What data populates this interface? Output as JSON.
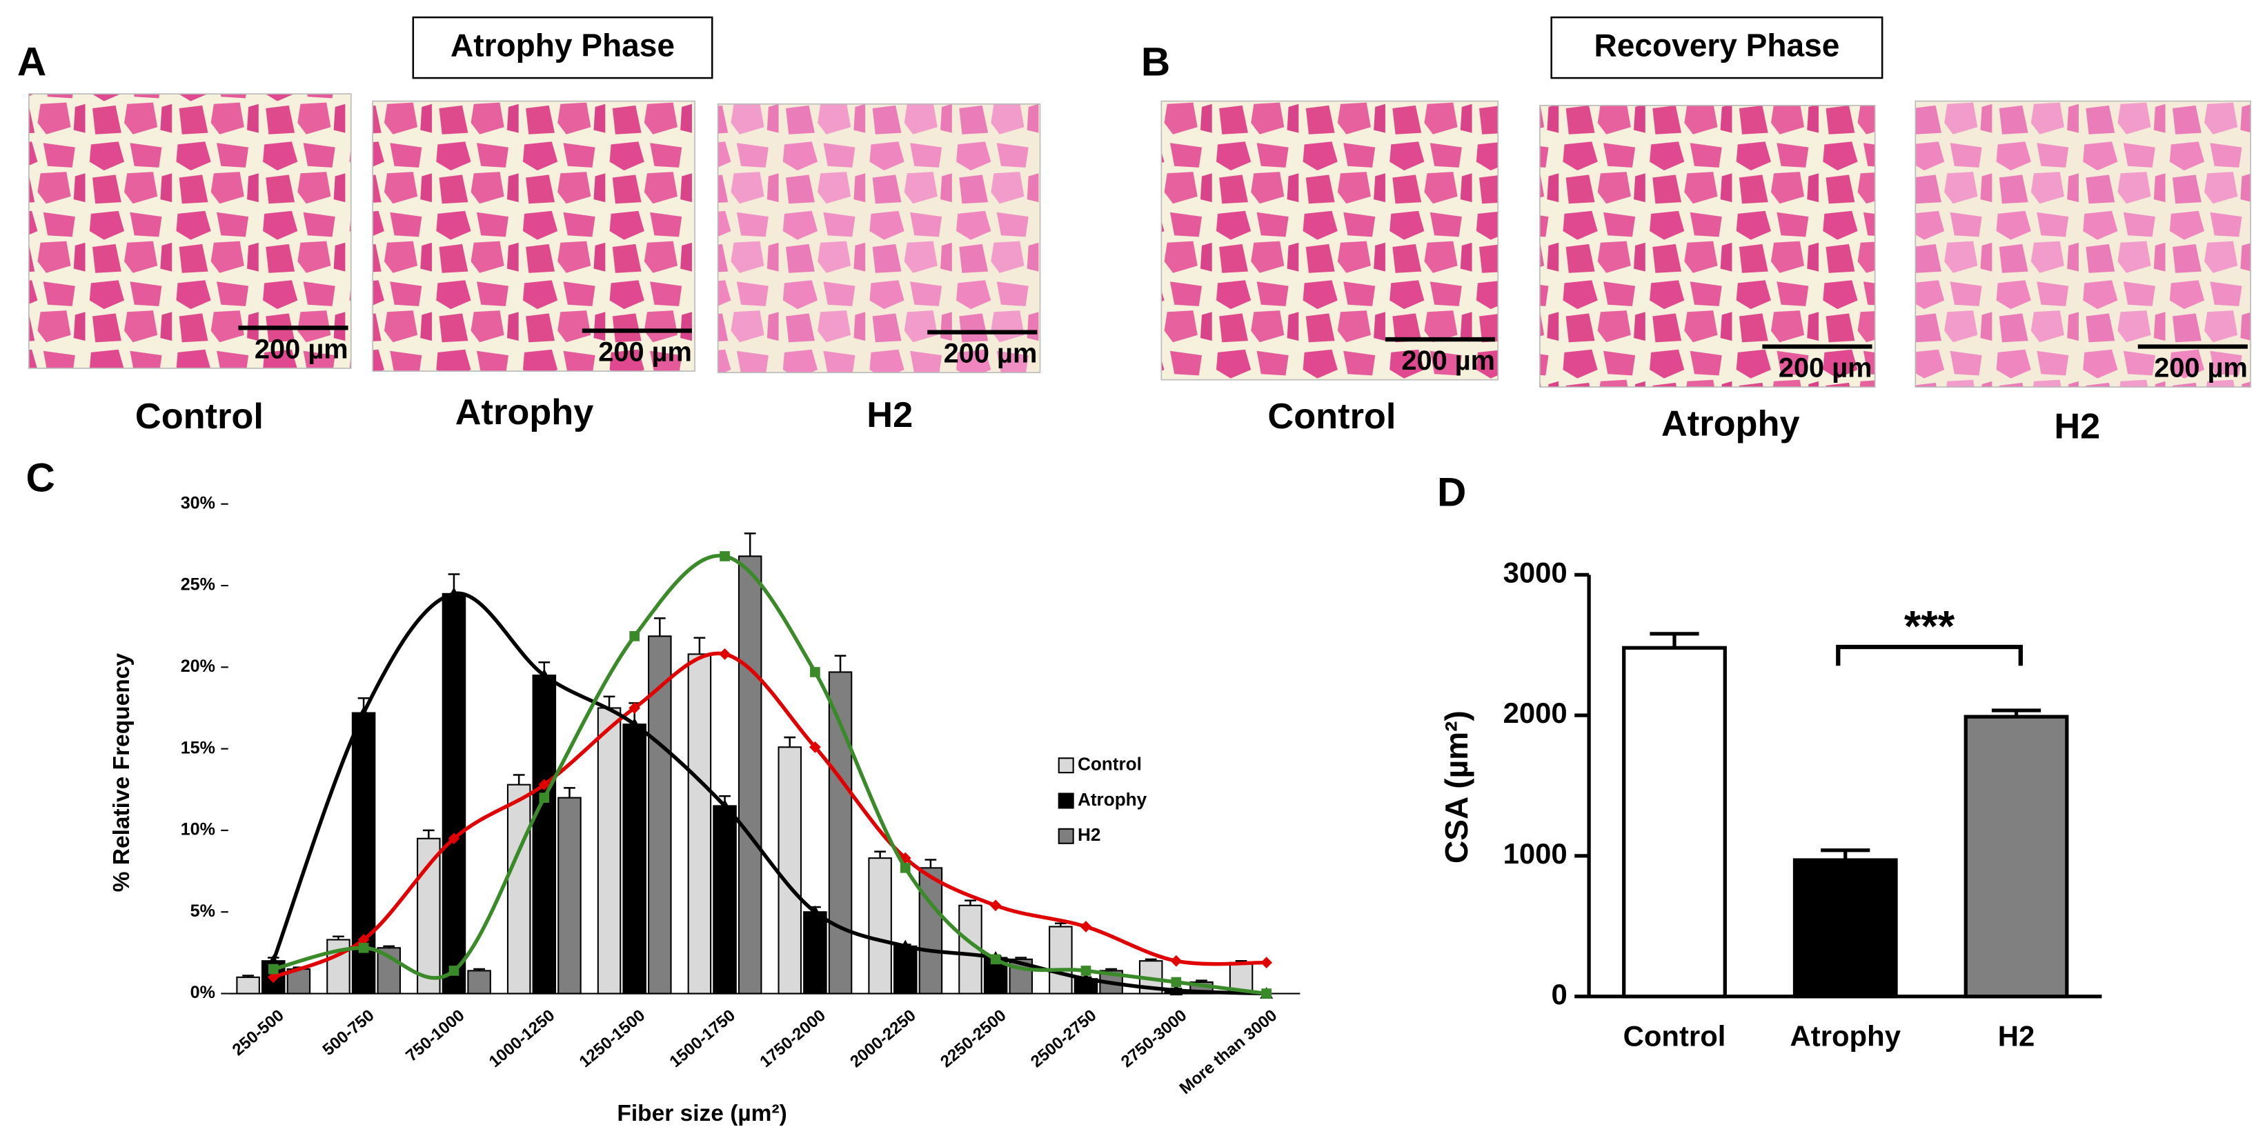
{
  "panels": [
    {
      "letter": "A",
      "title": "Atrophy Phase",
      "images": [
        {
          "label": "Control",
          "scale_bar": "200 µm"
        },
        {
          "label": "Atrophy",
          "scale_bar": "200 µm"
        },
        {
          "label": "H2",
          "scale_bar": "200 µm"
        }
      ]
    },
    {
      "letter": "B",
      "title": "Recovery Phase",
      "images": [
        {
          "label": "Control",
          "scale_bar": "200 µm"
        },
        {
          "label": "Atrophy",
          "scale_bar": "200 µm"
        },
        {
          "label": "H2",
          "scale_bar": "200 µm"
        }
      ]
    }
  ],
  "chart_data": [
    {
      "type": "bar",
      "panel": "C",
      "y_label": "% Relative Frequency",
      "x_label": "Fiber size (µm²)",
      "categories": [
        "250-500",
        "500-750",
        "750-1000",
        "1000-1250",
        "1250-1500",
        "1500-1750",
        "1750-2000",
        "2000-2250",
        "2250-2500",
        "2500-2750",
        "2750-3000",
        "More than 3000"
      ],
      "series": [
        {
          "name": "Control",
          "color": "#d9d9d9",
          "line_color": "#e00000",
          "marker": "diamond",
          "values": [
            1.0,
            3.3,
            9.5,
            12.8,
            17.5,
            20.8,
            15.1,
            8.3,
            5.4,
            4.1,
            2.0,
            1.9
          ],
          "errors": [
            0.1,
            0.2,
            0.5,
            0.6,
            0.7,
            1.0,
            0.6,
            0.4,
            0.3,
            0.2,
            0.1,
            0.1
          ]
        },
        {
          "name": "Atrophy",
          "color": "#000000",
          "line_color": "#000000",
          "marker": "triangle",
          "values": [
            2.0,
            17.2,
            24.5,
            19.5,
            16.5,
            11.5,
            5.0,
            2.9,
            2.2,
            0.9,
            0.2,
            0
          ],
          "errors": [
            0.2,
            0.9,
            1.2,
            0.8,
            1.3,
            0.6,
            0.3,
            0.1,
            0.1,
            0.1,
            0.1,
            0
          ]
        },
        {
          "name": "H2",
          "color": "#7f7f7f",
          "line_color": "#3a8a2a",
          "marker": "square",
          "values": [
            1.5,
            2.8,
            1.4,
            12.0,
            21.9,
            26.8,
            19.7,
            7.7,
            2.1,
            1.4,
            0.7,
            0
          ],
          "errors": [
            0.1,
            0.1,
            0.1,
            0.6,
            1.1,
            1.4,
            1.0,
            0.5,
            0.1,
            0.1,
            0.1,
            0
          ]
        }
      ],
      "trend_lines": true,
      "legend": "right",
      "ylim": [
        0,
        30
      ],
      "yticks": [
        {
          "value": 0,
          "label": "0%"
        },
        {
          "value": 5,
          "label": "5%"
        },
        {
          "value": 10,
          "label": "10%"
        },
        {
          "value": 15,
          "label": "15%"
        },
        {
          "value": 20,
          "label": "20%"
        },
        {
          "value": 25,
          "label": "25%"
        },
        {
          "value": 30,
          "label": "30%"
        }
      ]
    },
    {
      "type": "bar",
      "panel": "D",
      "y_label": "CSA (µm²)",
      "categories": [
        "Control",
        "Atrophy",
        "H2"
      ],
      "values": [
        2480,
        970,
        1990
      ],
      "errors": [
        100,
        70,
        45
      ],
      "colors": [
        "#ffffff",
        "#000000",
        "#808080"
      ],
      "ylim": [
        0,
        3000
      ],
      "yticks": [
        0,
        1000,
        2000,
        3000
      ],
      "annotation": "***"
    }
  ]
}
